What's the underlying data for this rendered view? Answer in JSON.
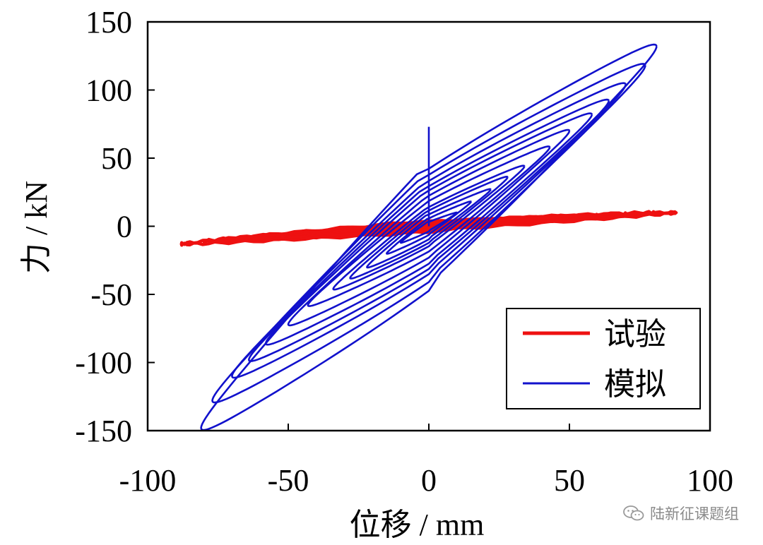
{
  "chart_data": {
    "type": "line",
    "title": "",
    "xlabel": "位移 / mm",
    "ylabel": "力 / kN",
    "xlim": [
      -100,
      100
    ],
    "ylim": [
      -150,
      150
    ],
    "xticks": [
      -100,
      -50,
      0,
      50,
      100
    ],
    "yticks": [
      -150,
      -100,
      -50,
      0,
      50,
      100,
      150
    ],
    "xtick_labels": [
      "-100",
      "-50",
      "0",
      "50",
      "100"
    ],
    "ytick_labels": [
      "-150",
      "-100",
      "-50",
      "0",
      "50",
      "100",
      "150"
    ],
    "grid": false,
    "legend_position": "bottom-right",
    "series": [
      {
        "name": "试验",
        "color": "#ee1111",
        "style": "hysteresis",
        "cycles": [
          {
            "dmax": 10,
            "fmax": 3,
            "fmin": -3
          },
          {
            "dmax": 20,
            "fmax": 4,
            "fmin": -4
          },
          {
            "dmax": 30,
            "fmax": 5,
            "fmin": -5
          },
          {
            "dmax": 40,
            "fmax": 6,
            "fmin": -6
          },
          {
            "dmax": 50,
            "fmax": 7,
            "fmin": -8
          },
          {
            "dmax": 60,
            "fmax": 8,
            "fmin": -9
          },
          {
            "dmax": 70,
            "fmax": 9,
            "fmin": -10
          },
          {
            "dmax": 80,
            "fmax": 10,
            "fmin": -11
          },
          {
            "dmax": 88,
            "fmax": 10,
            "fmin": -13
          }
        ]
      },
      {
        "name": "模拟",
        "color": "#1111cc",
        "style": "hysteresis",
        "initial_spike": {
          "d": 0,
          "f": 73
        },
        "cycles": [
          {
            "dmax": 10,
            "fmax": 10,
            "fmin": -12
          },
          {
            "dmax": 15,
            "fmax": 18,
            "fmin": -20
          },
          {
            "dmax": 22,
            "fmax": 27,
            "fmin": -30
          },
          {
            "dmax": 28,
            "fmax": 36,
            "fmin": -38
          },
          {
            "dmax": 34,
            "fmax": 44,
            "fmin": -46
          },
          {
            "dmax": 43,
            "fmax": 58,
            "fmin": -58
          },
          {
            "dmax": 50,
            "fmax": 70,
            "fmin": -72
          },
          {
            "dmax": 58,
            "fmax": 82,
            "fmin": -86
          },
          {
            "dmax": 64,
            "fmax": 92,
            "fmin": -98
          },
          {
            "dmax": 70,
            "fmax": 104,
            "fmin": -110
          },
          {
            "dmax": 77,
            "fmax": 118,
            "fmin": -128
          },
          {
            "dmax": 81,
            "fmax": 132,
            "fmin": -148
          }
        ]
      }
    ]
  },
  "watermark": {
    "icon": "wechat-icon",
    "text": "陆新征课题组"
  }
}
